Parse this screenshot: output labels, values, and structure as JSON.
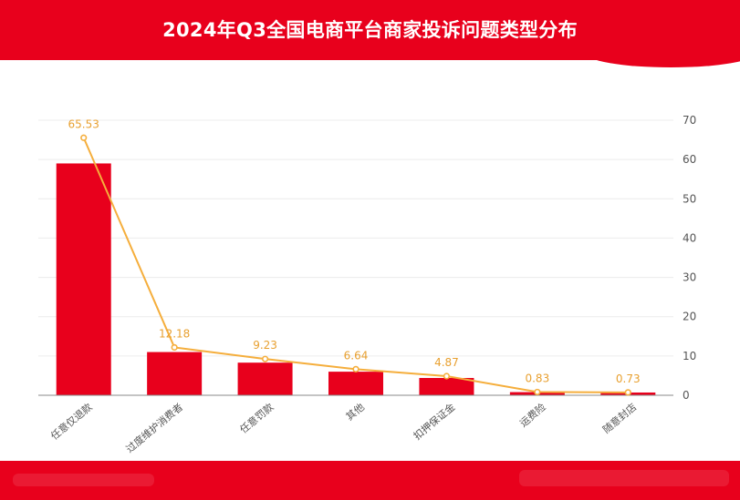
{
  "header": {
    "title": "2024年Q3全国电商平台商家投诉问题类型分布"
  },
  "chart_data": {
    "type": "bar",
    "title": "2024年Q3全国电商平台商家投诉问题类型分布",
    "categories": [
      "任意仅退款",
      "过度维护消费者",
      "任意罚款",
      "其他",
      "扣押保证金",
      "运费险",
      "随意封店"
    ],
    "series": [
      {
        "kind": "bar",
        "values": [
          59,
          11,
          8.3,
          6,
          4.4,
          0.8,
          0.7
        ]
      },
      {
        "kind": "line",
        "values": [
          65.53,
          12.18,
          9.23,
          6.64,
          4.87,
          0.83,
          0.73
        ]
      }
    ],
    "data_labels": [
      "65.53",
      "12.18",
      "9.23",
      "6.64",
      "4.87",
      "0.83",
      "0.73"
    ],
    "yaxis": {
      "position": "right",
      "ylim": [
        0,
        70
      ],
      "ticks": [
        "0",
        "10",
        "20",
        "30",
        "40",
        "50",
        "60",
        "70"
      ]
    },
    "xlabel": "",
    "ylabel": "",
    "grid": true,
    "colors": {
      "bar": "#e8001c",
      "line": "#f5ae3c",
      "label": "#e8a030",
      "grid": "#ececec",
      "axis": "#888888",
      "tick_text": "#555555"
    }
  }
}
